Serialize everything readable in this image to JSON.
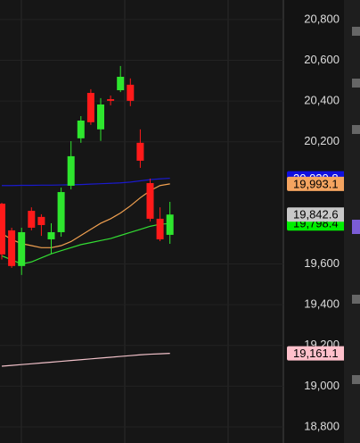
{
  "chart_data": {
    "type": "candlestick",
    "ylim": [
      18721,
      20896
    ],
    "yticks": [
      {
        "value": 18800,
        "label": "18,800"
      },
      {
        "value": 19000,
        "label": "19,000"
      },
      {
        "value": 19200,
        "label": "19,200"
      },
      {
        "value": 19400,
        "label": "19,400"
      },
      {
        "value": 19600,
        "label": "19,600"
      },
      {
        "value": 20200,
        "label": "20,200"
      },
      {
        "value": 20400,
        "label": "20,400"
      },
      {
        "value": 20600,
        "label": "20,600"
      },
      {
        "value": 20800,
        "label": "20,800"
      }
    ],
    "up_color": "#2ee62e",
    "down_color": "#ff1a1a",
    "open": [
      19896,
      19765,
      19590,
      19861,
      19831,
      19721,
      19756,
      19984,
      20217,
      20440,
      20261,
      20409,
      20453,
      20480,
      20195,
      19997,
      19822,
      19743
    ],
    "high": [
      19900,
      19778,
      19778,
      19878,
      19844,
      19800,
      19975,
      20203,
      20326,
      20458,
      20414,
      20427,
      20572,
      20511,
      20261,
      20019,
      19878,
      19905
    ],
    "low": [
      19622,
      19581,
      19546,
      19765,
      19738,
      19651,
      19734,
      19966,
      20195,
      20283,
      20204,
      20379,
      20444,
      20375,
      20072,
      19809,
      19712,
      19699
    ],
    "close": [
      19647,
      19590,
      19756,
      19778,
      19791,
      19756,
      19953,
      20129,
      20304,
      20296,
      20383,
      20401,
      20519,
      20401,
      20107,
      19822,
      19721,
      19842.6
    ],
    "last_price_label": "19,842.6",
    "overlays": [
      {
        "color": "#1a1acc",
        "label_color": "#1010e0",
        "values": [
          19985,
          19985,
          19986,
          19986,
          19987,
          19987,
          19988,
          19989,
          19990,
          19992,
          19994,
          19996,
          19998,
          20002,
          20008,
          20014,
          20018,
          20020.8
        ],
        "last_label": "20,020.8"
      },
      {
        "color": "#f0a050",
        "label_color": "#f4a460",
        "values": [
          19750,
          19720,
          19700,
          19690,
          19680,
          19680,
          19690,
          19710,
          19740,
          19770,
          19800,
          19822,
          19850,
          19885,
          19925,
          19960,
          19985,
          19993.1
        ],
        "last_label": "19,993.1"
      },
      {
        "color": "#33dd33",
        "label_color": "#00ee00",
        "values": [
          19640,
          19620,
          19600,
          19610,
          19630,
          19650,
          19665,
          19680,
          19695,
          19705,
          19715,
          19725,
          19740,
          19755,
          19770,
          19785,
          19795,
          19798.4
        ],
        "last_label": "19,798.4"
      },
      {
        "color": "#f0c0c8",
        "label_color": "#ffc0cb",
        "values": [
          19098,
          19102,
          19106,
          19110,
          19114,
          19118,
          19122,
          19126,
          19130,
          19134,
          19138,
          19142,
          19146,
          19150,
          19154,
          19157,
          19159,
          19161.1
        ],
        "last_label": "19,161.1"
      }
    ]
  }
}
